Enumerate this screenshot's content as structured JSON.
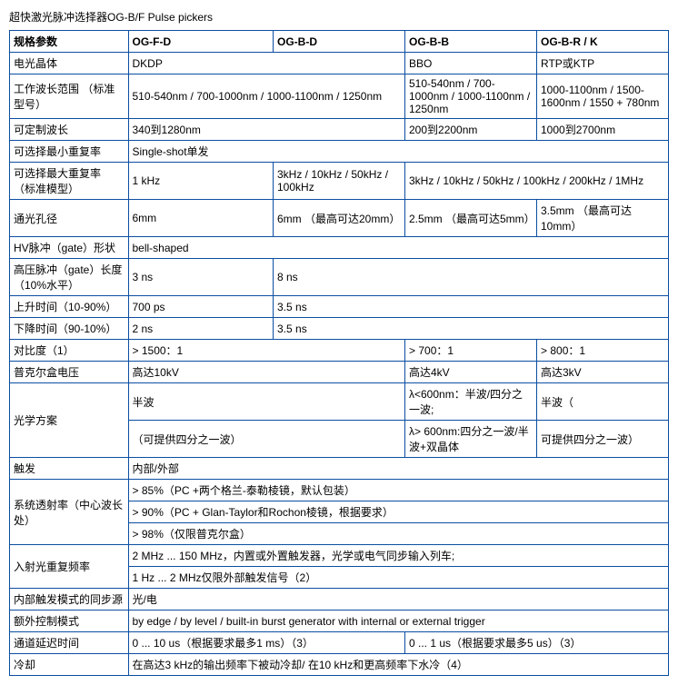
{
  "title": "超快激光脉冲选择器OG-B/F Pulse pickers",
  "border_color": "#0b4ea2",
  "columns": [
    "规格参数",
    "OG-F-D",
    "OG-B-D",
    "OG-B-B",
    "OG-B-R / K"
  ],
  "rows": {
    "r1_label": "电光晶体",
    "r1_c1": "DKDP",
    "r1_c3": "BBO",
    "r1_c4": "RTP或KTP",
    "r2_label": "工作波长范围 （标准型号）",
    "r2_c1": "510-540nm / 700-1000nm / 1000-1100nm / 1250nm",
    "r2_c3": "510-540nm / 700-1000nm / 1000-1100nm / 1250nm",
    "r2_c4": "1000-1100nm / 1500-1600nm / 1550 + 780nm",
    "r3_label": "可定制波长",
    "r3_c1": "340到1280nm",
    "r3_c3": "200到2200nm",
    "r3_c4": "1000到2700nm",
    "r4_label": "可选择最小重复率",
    "r4_c1": "Single-shot单发",
    "r5_label": "可选择最大重复率 （标准模型）",
    "r5_c1": "1 kHz",
    "r5_c2": "3kHz / 10kHz / 50kHz / 100kHz",
    "r5_c3": "3kHz / 10kHz / 50kHz / 100kHz / 200kHz / 1MHz",
    "r6_label": "通光孔径",
    "r6_c1": "6mm",
    "r6_c2": "6mm （最高可达20mm）",
    "r6_c3": "2.5mm （最高可达5mm）",
    "r6_c4": "3.5mm （最高可达10mm）",
    "r7_label": "HV脉冲（gate）形状",
    "r7_c1": "bell-shaped",
    "r8_label": "高压脉冲（gate）长度（10%水平）",
    "r8_c1": "3 ns",
    "r8_c2": "8 ns",
    "r9_label": "上升时间（10-90%）",
    "r9_c1": "700 ps",
    "r9_c2": "3.5 ns",
    "r10_label": "下降时间（90-10%）",
    "r10_c1": "2 ns",
    "r10_c2": "3.5 ns",
    "r11_label": "对比度（1）",
    "r11_c1": "> 1500：1",
    "r11_c3": "> 700：1",
    "r11_c4": "> 800：1",
    "r12_label": "普克尔盒电压",
    "r12_c1": "高达10kV",
    "r12_c3": "高达4kV",
    "r12_c4": "高达3kV",
    "r13_label": "光学方案",
    "r13_a_c1": "半波",
    "r13_a_c3": "λ<600nm：半波/四分之一波;",
    "r13_a_c4": "半波（",
    "r13_b_c1": "（可提供四分之一波）",
    "r13_b_c3": "λ> 600nm:四分之一波/半波+双晶体",
    "r13_b_c4": "可提供四分之一波）",
    "r14_label": "触发",
    "r14_c1": "内部/外部",
    "r15_label": "系统透射率（中心波长处）",
    "r15_a": "> 85%（PC +两个格兰-泰勒棱镜，默认包装）",
    "r15_b": "> 90%（PC + Glan-Taylor和Rochon棱镜，根据要求）",
    "r15_c": "> 98%（仅限普克尔盒）",
    "r16_label": "入射光重复频率",
    "r16_a": "2 MHz ... 150 MHz，内置或外置触发器，光学或电气同步输入列车;",
    "r16_b": "1 Hz ... 2 MHz仅限外部触发信号（2）",
    "r17_label": "内部触发模式的同步源",
    "r17_c1": "光/电",
    "r18_label": "额外控制模式",
    "r18_c1": "by edge / by level / built-in burst generator with internal or external trigger",
    "r19_label": "通道延迟时间",
    "r19_c1": "0 ... 10 us（根据要求最多1 ms）（3）",
    "r19_c3": "0 ... 1 us（根据要求最多5 us）（3）",
    "r20_label": "冷却",
    "r20_c1": "在高达3 kHz的输出频率下被动冷却/ 在10 kHz和更高频率下水冷（4）"
  }
}
